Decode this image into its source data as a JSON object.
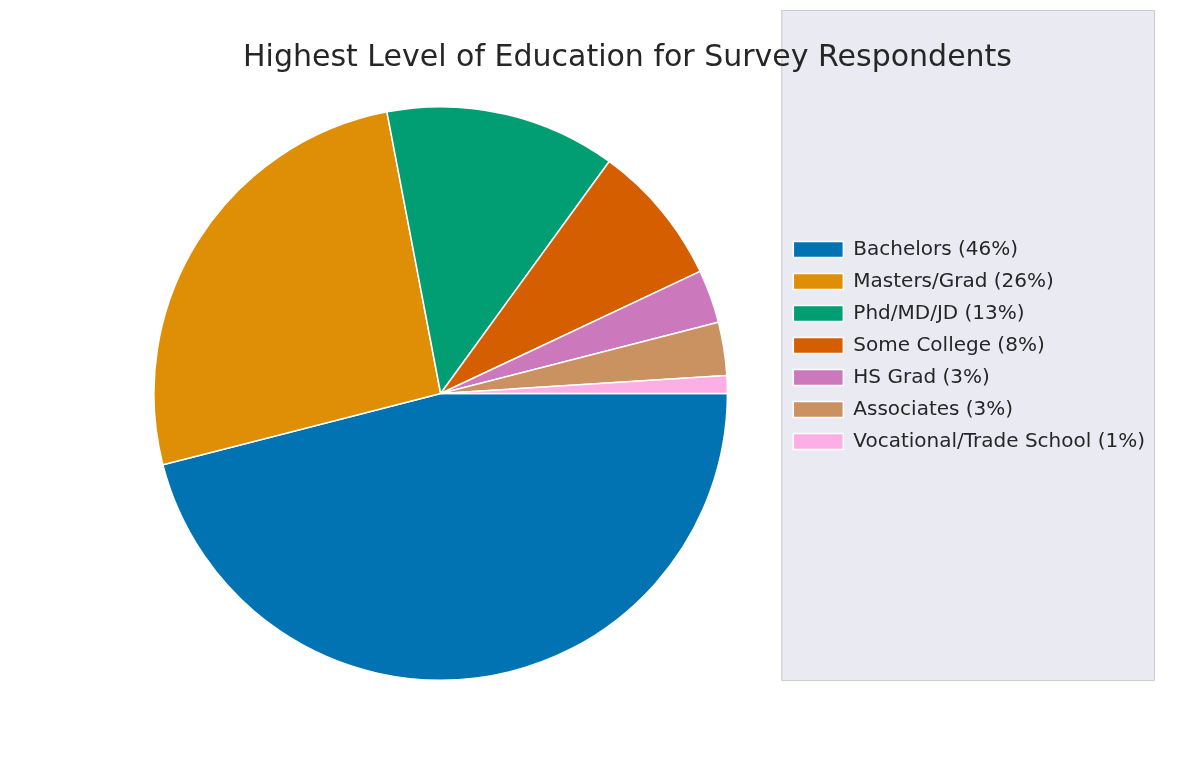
{
  "chart_data": {
    "type": "pie",
    "title": "Highest Level of Education for Survey Respondents",
    "categories": [
      "Bachelors (46%)",
      "Masters/Grad (26%)",
      "Phd/MD/JD (13%)",
      "Some College (8%)",
      "HS Grad (3%)",
      "Associates (3%)",
      "Vocational/Trade School (1%)"
    ],
    "values": [
      46,
      26,
      13,
      8,
      3,
      3,
      1
    ],
    "colors": [
      "#0173b2",
      "#de8f05",
      "#029e73",
      "#d55e00",
      "#cc78bc",
      "#ca9161",
      "#fbafe4"
    ],
    "legend": "right"
  }
}
